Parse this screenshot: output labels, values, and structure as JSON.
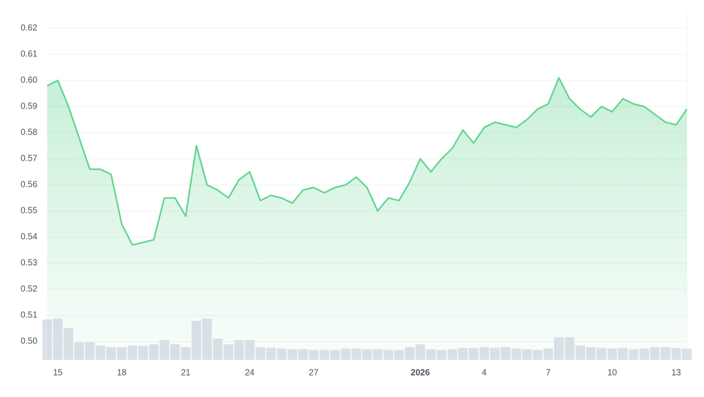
{
  "chart_data": {
    "type": "line",
    "x": [
      -0.5,
      0,
      0.5,
      1,
      1.5,
      2,
      2.5,
      3,
      3.5,
      4,
      4.5,
      5,
      5.5,
      6,
      6.5,
      7,
      7.5,
      8,
      8.5,
      9,
      9.5,
      10,
      10.5,
      11,
      11.5,
      12,
      12.5,
      13,
      13.5,
      14,
      14.5,
      15,
      15.5,
      16,
      16.5,
      17,
      17.5,
      18,
      18.5,
      19,
      19.5,
      20,
      20.5,
      21,
      21.5,
      22,
      22.5,
      23,
      23.5,
      24,
      24.5,
      25,
      25.5,
      26,
      26.5,
      27,
      27.5,
      28,
      28.5,
      29,
      29.5
    ],
    "series": [
      {
        "color": "#5fd38d",
        "values": [
          0.598,
          0.6,
          0.59,
          0.578,
          0.566,
          0.566,
          0.564,
          0.545,
          0.537,
          0.538,
          0.539,
          0.555,
          0.555,
          0.548,
          0.575,
          0.56,
          0.558,
          0.555,
          0.562,
          0.565,
          0.554,
          0.556,
          0.555,
          0.553,
          0.558,
          0.559,
          0.557,
          0.559,
          0.56,
          0.563,
          0.559,
          0.55,
          0.555,
          0.554,
          0.561,
          0.57,
          0.565,
          0.57,
          0.574,
          0.581,
          0.576,
          0.582,
          0.584,
          0.583,
          0.582,
          0.585,
          0.589,
          0.591,
          0.601,
          0.593,
          0.589,
          0.586,
          0.59,
          0.588,
          0.593,
          0.591,
          0.59,
          0.587,
          0.584,
          0.583,
          0.589
        ]
      },
      {
        "type": "bar",
        "color": "#dde1ea",
        "values": [
          57,
          58,
          45,
          25,
          25,
          20,
          18,
          18,
          20,
          20,
          22,
          28,
          22,
          18,
          55,
          58,
          30,
          22,
          28,
          28,
          18,
          17,
          16,
          15,
          15,
          14,
          14,
          14,
          16,
          16,
          15,
          15,
          14,
          14,
          18,
          22,
          15,
          14,
          15,
          17,
          17,
          18,
          17,
          18,
          16,
          15,
          14,
          16,
          32,
          32,
          20,
          18,
          17,
          16,
          17,
          15,
          16,
          18,
          18,
          17,
          16
        ]
      }
    ],
    "xlim": [
      -0.55,
      29.5
    ],
    "xticks": [
      {
        "value": 0,
        "label": "15"
      },
      {
        "value": 3,
        "label": "18"
      },
      {
        "value": 6,
        "label": "21"
      },
      {
        "value": 9,
        "label": "24"
      },
      {
        "value": 12,
        "label": "27"
      },
      {
        "value": 17,
        "label": "2026"
      },
      {
        "value": 20,
        "label": "4"
      },
      {
        "value": 23,
        "label": "7"
      },
      {
        "value": 26,
        "label": "10"
      },
      {
        "value": 29,
        "label": "13"
      }
    ],
    "ylim": [
      0.493,
      0.625
    ],
    "yticks": [
      {
        "value": 0.5,
        "label": "0.50"
      },
      0.51,
      0.52,
      0.53,
      0.54,
      0.55,
      0.56,
      0.57,
      0.58,
      0.59,
      {
        "value": 0.6,
        "label": "0.60"
      },
      0.61,
      0.62
    ],
    "grid": true
  }
}
